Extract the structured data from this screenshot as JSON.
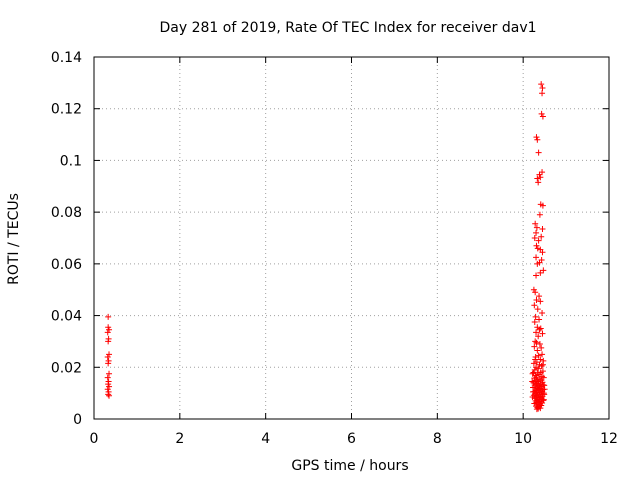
{
  "chart_data": {
    "type": "scatter",
    "title": "Day 281 of 2019, Rate Of TEC Index for receiver dav1",
    "xlabel": "GPS time / hours",
    "ylabel": "ROTI / TECUs",
    "xlim": [
      0,
      12
    ],
    "ylim": [
      0,
      0.14
    ],
    "xticks": [
      0,
      2,
      4,
      6,
      8,
      10,
      12
    ],
    "xtick_labels": [
      "0",
      "2",
      "4",
      "6",
      "8",
      "10",
      "12"
    ],
    "yticks": [
      0,
      0.02,
      0.04,
      0.06,
      0.08,
      0.1,
      0.12,
      0.14
    ],
    "ytick_labels": [
      "0",
      "0.02",
      "0.04",
      "0.06",
      "0.08",
      "0.1",
      "0.12",
      "0.14"
    ],
    "grid": true,
    "marker": "+",
    "series": [
      {
        "name": "dav1",
        "color": "#ff0000",
        "points": [
          [
            0.33,
            0.0395
          ],
          [
            0.33,
            0.0355
          ],
          [
            0.35,
            0.0345
          ],
          [
            0.32,
            0.0335
          ],
          [
            0.34,
            0.031
          ],
          [
            0.33,
            0.03
          ],
          [
            0.35,
            0.025
          ],
          [
            0.32,
            0.024
          ],
          [
            0.34,
            0.0225
          ],
          [
            0.33,
            0.0215
          ],
          [
            0.35,
            0.0175
          ],
          [
            0.32,
            0.016
          ],
          [
            0.34,
            0.0145
          ],
          [
            0.33,
            0.0135
          ],
          [
            0.35,
            0.0125
          ],
          [
            0.32,
            0.0115
          ],
          [
            0.34,
            0.0105
          ],
          [
            0.33,
            0.0095
          ],
          [
            0.35,
            0.009
          ],
          [
            10.42,
            0.1295
          ],
          [
            10.45,
            0.128
          ],
          [
            10.44,
            0.126
          ],
          [
            10.43,
            0.118
          ],
          [
            10.46,
            0.117
          ],
          [
            10.31,
            0.109
          ],
          [
            10.33,
            0.108
          ],
          [
            10.36,
            0.103
          ],
          [
            10.44,
            0.0955
          ],
          [
            10.38,
            0.0945
          ],
          [
            10.33,
            0.093
          ],
          [
            10.4,
            0.0935
          ],
          [
            10.35,
            0.0915
          ],
          [
            10.46,
            0.0825
          ],
          [
            10.41,
            0.083
          ],
          [
            10.39,
            0.079
          ],
          [
            10.28,
            0.0755
          ],
          [
            10.32,
            0.074
          ],
          [
            10.45,
            0.0735
          ],
          [
            10.3,
            0.072
          ],
          [
            10.42,
            0.0705
          ],
          [
            10.27,
            0.07
          ],
          [
            10.36,
            0.069
          ],
          [
            10.31,
            0.067
          ],
          [
            10.34,
            0.066
          ],
          [
            10.4,
            0.0655
          ],
          [
            10.45,
            0.0645
          ],
          [
            10.3,
            0.0625
          ],
          [
            10.43,
            0.0615
          ],
          [
            10.38,
            0.0605
          ],
          [
            10.33,
            0.06
          ],
          [
            10.47,
            0.0575
          ],
          [
            10.4,
            0.0565
          ],
          [
            10.3,
            0.0555
          ],
          [
            10.25,
            0.05
          ],
          [
            10.28,
            0.049
          ],
          [
            10.37,
            0.0475
          ],
          [
            10.31,
            0.046
          ],
          [
            10.4,
            0.0455
          ],
          [
            10.26,
            0.044
          ],
          [
            10.34,
            0.0425
          ],
          [
            10.44,
            0.041
          ],
          [
            10.29,
            0.0395
          ],
          [
            10.37,
            0.0385
          ],
          [
            10.27,
            0.0375
          ],
          [
            10.33,
            0.0355
          ],
          [
            10.41,
            0.035
          ],
          [
            10.38,
            0.0345
          ],
          [
            10.3,
            0.0335
          ],
          [
            10.45,
            0.033
          ],
          [
            10.35,
            0.032
          ],
          [
            10.28,
            0.03
          ],
          [
            10.31,
            0.0295
          ],
          [
            10.39,
            0.029
          ],
          [
            10.26,
            0.028
          ],
          [
            10.42,
            0.0275
          ],
          [
            10.33,
            0.0265
          ],
          [
            10.44,
            0.025
          ],
          [
            10.36,
            0.0245
          ],
          [
            10.29,
            0.024
          ],
          [
            10.4,
            0.023
          ],
          [
            10.47,
            0.0225
          ],
          [
            10.32,
            0.022
          ],
          [
            10.25,
            0.0215
          ],
          [
            10.38,
            0.021
          ],
          [
            10.43,
            0.0205
          ],
          [
            10.3,
            0.02
          ],
          [
            10.35,
            0.0195
          ],
          [
            10.27,
            0.019
          ],
          [
            10.46,
            0.0185
          ],
          [
            10.41,
            0.018
          ],
          [
            10.33,
            0.0178
          ],
          [
            10.22,
            0.0175
          ],
          [
            10.37,
            0.0172
          ],
          [
            10.29,
            0.0168
          ],
          [
            10.44,
            0.0165
          ],
          [
            10.31,
            0.0162
          ],
          [
            10.48,
            0.016
          ],
          [
            10.26,
            0.0158
          ],
          [
            10.39,
            0.0155
          ],
          [
            10.34,
            0.0152
          ],
          [
            10.42,
            0.015
          ],
          [
            10.28,
            0.0148
          ],
          [
            10.36,
            0.0145
          ],
          [
            10.45,
            0.0142
          ],
          [
            10.24,
            0.014
          ],
          [
            10.32,
            0.0138
          ],
          [
            10.4,
            0.0136
          ],
          [
            10.3,
            0.0134
          ],
          [
            10.47,
            0.0132
          ],
          [
            10.35,
            0.013
          ],
          [
            10.27,
            0.0128
          ],
          [
            10.43,
            0.0126
          ],
          [
            10.38,
            0.0124
          ],
          [
            10.23,
            0.0122
          ],
          [
            10.33,
            0.012
          ],
          [
            10.41,
            0.0118
          ],
          [
            10.29,
            0.0116
          ],
          [
            10.46,
            0.0114
          ],
          [
            10.36,
            0.0112
          ],
          [
            10.31,
            0.011
          ],
          [
            10.44,
            0.0108
          ],
          [
            10.26,
            0.0106
          ],
          [
            10.39,
            0.0104
          ],
          [
            10.34,
            0.0102
          ],
          [
            10.48,
            0.01
          ],
          [
            10.28,
            0.0098
          ],
          [
            10.42,
            0.0096
          ],
          [
            10.37,
            0.0094
          ],
          [
            10.25,
            0.0092
          ],
          [
            10.32,
            0.009
          ],
          [
            10.45,
            0.0088
          ],
          [
            10.3,
            0.0086
          ],
          [
            10.4,
            0.0084
          ],
          [
            10.35,
            0.0082
          ],
          [
            10.27,
            0.008
          ],
          [
            10.43,
            0.0078
          ],
          [
            10.38,
            0.0076
          ],
          [
            10.33,
            0.0074
          ],
          [
            10.47,
            0.0072
          ],
          [
            10.29,
            0.007
          ],
          [
            10.41,
            0.0068
          ],
          [
            10.36,
            0.0066
          ],
          [
            10.31,
            0.0064
          ],
          [
            10.44,
            0.0062
          ],
          [
            10.26,
            0.006
          ],
          [
            10.39,
            0.0058
          ],
          [
            10.34,
            0.0055
          ],
          [
            10.42,
            0.0052
          ],
          [
            10.3,
            0.005
          ],
          [
            10.37,
            0.0048
          ],
          [
            10.33,
            0.0045
          ],
          [
            10.4,
            0.0042
          ],
          [
            10.35,
            0.004
          ],
          [
            10.32,
            0.0038
          ],
          [
            10.21,
            0.0145
          ],
          [
            10.23,
            0.0105
          ],
          [
            10.22,
            0.0085
          ],
          [
            10.49,
            0.013
          ],
          [
            10.49,
            0.0095
          ],
          [
            10.48,
            0.0075
          ],
          [
            10.5,
            0.0115
          ],
          [
            10.46,
            0.021
          ],
          [
            10.24,
            0.018
          ],
          [
            10.28,
            0.023
          ]
        ]
      }
    ]
  }
}
